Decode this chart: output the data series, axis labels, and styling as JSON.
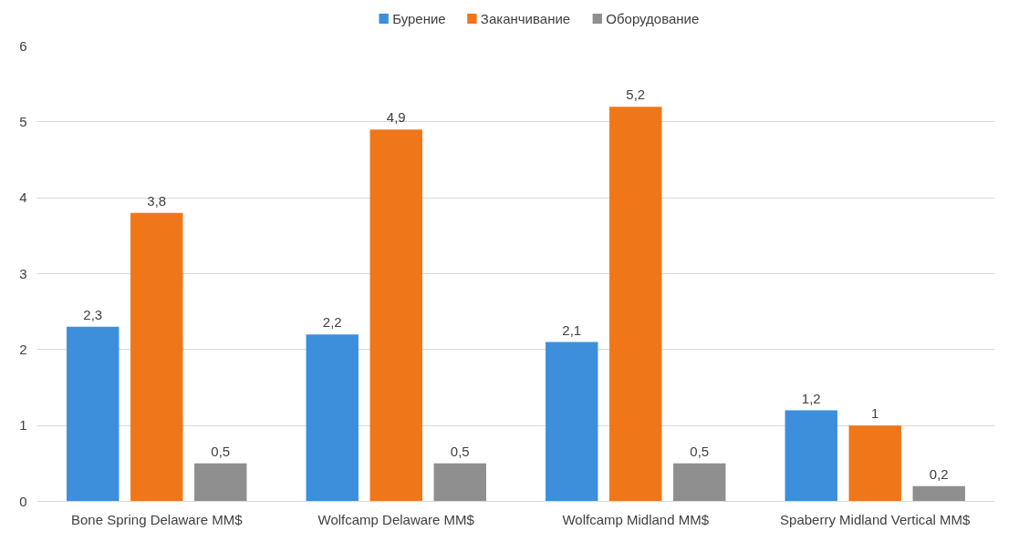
{
  "chart_data": {
    "type": "bar",
    "categories": [
      "Bone Spring Delaware MM$",
      "Wolfcamp Delaware MM$",
      "Wolfcamp Midland MM$",
      "Spaberry Midland Vertical MM$"
    ],
    "series": [
      {
        "name": "Бурение",
        "color": "#3d8fdc",
        "values": [
          2.3,
          2.2,
          2.1,
          1.2
        ],
        "value_labels": [
          "2,3",
          "2,2",
          "2,1",
          "1,2"
        ]
      },
      {
        "name": "Заканчивание",
        "color": "#f0761a",
        "values": [
          3.8,
          4.9,
          5.2,
          1
        ],
        "value_labels": [
          "3,8",
          "4,9",
          "5,2",
          "1"
        ]
      },
      {
        "name": "Оборудование",
        "color": "#8f8f8f",
        "values": [
          0.5,
          0.5,
          0.5,
          0.2
        ],
        "value_labels": [
          "0,5",
          "0,5",
          "0,5",
          "0,2"
        ]
      }
    ],
    "ylim": [
      0,
      6
    ],
    "yticks": [
      0,
      1,
      2,
      3,
      4,
      5,
      6
    ],
    "grid": "y",
    "legend": "top"
  }
}
